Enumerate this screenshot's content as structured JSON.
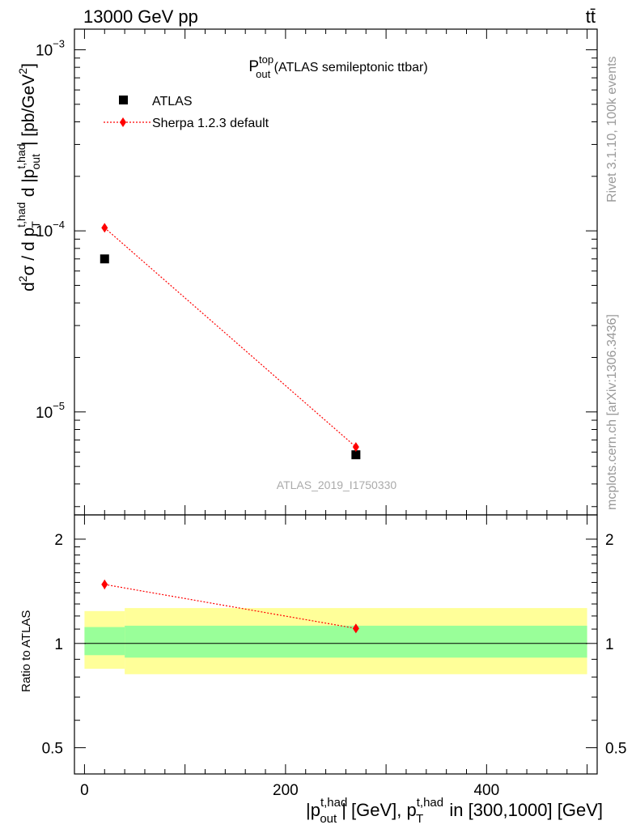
{
  "header": {
    "left_label": "13000 GeV pp",
    "right_label": "tt̄"
  },
  "side_labels": {
    "rivet": "Rivet 3.1.10,  100k events",
    "mcplots": "mcplots.cern.ch [arXiv:1306.3436]"
  },
  "chart_data": {
    "type": "scatter",
    "title": {
      "main": "P",
      "sup": "top",
      "sub": "out",
      "rest": " (ATLAS semileptonic ttbar)"
    },
    "watermark": "ATLAS_2019_I1750330",
    "xlim": [
      -10,
      510
    ],
    "x_ticks": [
      0,
      200,
      400
    ],
    "xlabel": {
      "p1": "|p",
      "sup1": "t,had",
      "sub1": "out",
      "p2": "| [GeV], p",
      "sup2": "t,had",
      "sub2": "T",
      "p3": " in [300,1000] [GeV]"
    },
    "ylabel_main": {
      "d": "d",
      "sup2": "2",
      "sigma": "σ /  d p",
      "sup_th": "t,had",
      "sub_T": "T",
      "mid": " d |p",
      "sup_th2": "t,had",
      "sub_out": "out",
      "end": "| [pb/GeV",
      "sup_g": "2",
      "close": "]"
    },
    "main_panel": {
      "yscale": "log",
      "ylim": [
        2.7e-06,
        0.0013
      ],
      "y_ticks": [
        {
          "value": 0.001,
          "base": "10",
          "exp": "−3"
        },
        {
          "value": 0.0001,
          "base": "10",
          "exp": "−4"
        },
        {
          "value": 1e-05,
          "base": "10",
          "exp": "−5"
        }
      ]
    },
    "ratio_panel": {
      "ylabel": "Ratio to ATLAS",
      "yscale": "log",
      "ylim": [
        0.42,
        2.35
      ],
      "y_ticks": [
        {
          "value": 0.5,
          "label": "0.5"
        },
        {
          "value": 1,
          "label": "1"
        },
        {
          "value": 2,
          "label": "2"
        }
      ],
      "bands": [
        {
          "x": [
            0,
            40
          ],
          "yellow": [
            0.845,
            1.24
          ],
          "green": [
            0.925,
            1.115
          ]
        },
        {
          "x": [
            40,
            500
          ],
          "yellow": [
            0.815,
            1.265
          ],
          "green": [
            0.91,
            1.125
          ]
        }
      ]
    },
    "series": [
      {
        "name": "ATLAS",
        "color": "#000000",
        "marker": "square",
        "points": [
          {
            "x": 20,
            "y": 7e-05
          },
          {
            "x": 270,
            "y": 5.8e-06
          }
        ]
      },
      {
        "name": "Sherpa 1.2.3 default",
        "color": "#ff0000",
        "marker": "diamond",
        "line": "dotted",
        "points": [
          {
            "x": 20,
            "y": 0.000104
          },
          {
            "x": 270,
            "y": 6.4e-06
          }
        ],
        "ratio": [
          {
            "x": 20,
            "y": 1.48,
            "err": 0.045
          },
          {
            "x": 270,
            "y": 1.105,
            "err": 0.03
          }
        ]
      }
    ]
  }
}
